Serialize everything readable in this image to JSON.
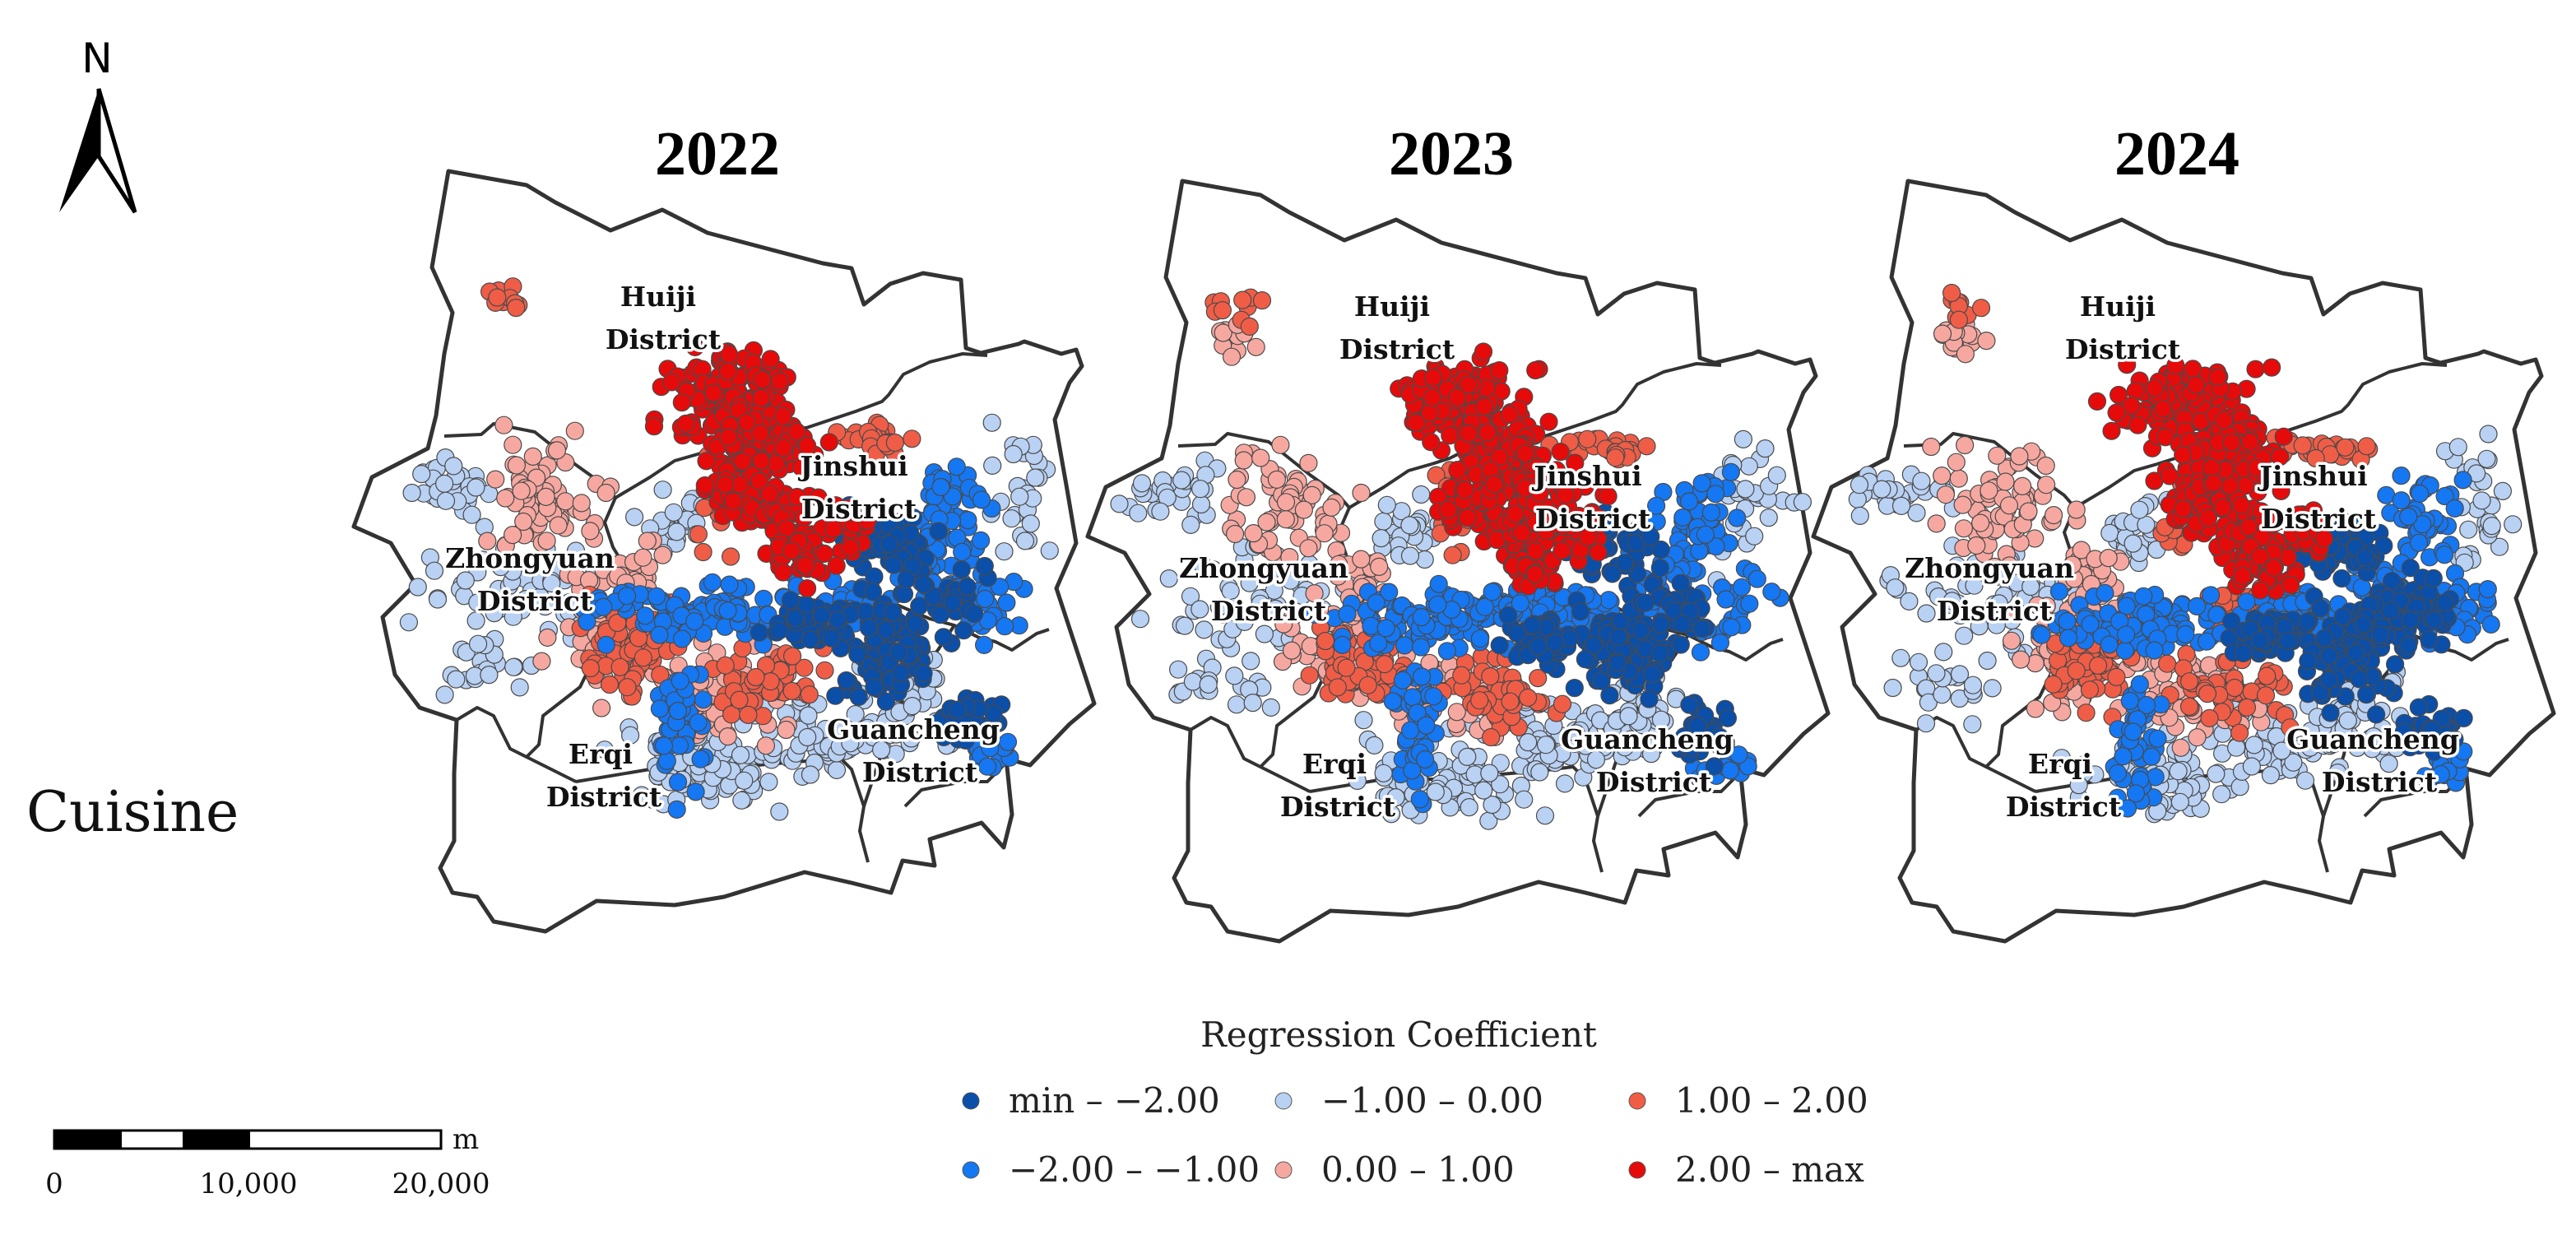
{
  "row_label": "Cuisine",
  "north_label": "N",
  "legend": {
    "title": "Regression Coefficient",
    "classes": [
      {
        "label": "min – −2.00",
        "color": "#0b4fa8"
      },
      {
        "label": "−2.00 – −1.00",
        "color": "#1577f2"
      },
      {
        "label": "−1.00 – 0.00",
        "color": "#b9d1f3"
      },
      {
        "label": "0.00 – 1.00",
        "color": "#f6a8a0"
      },
      {
        "label": "1.00 – 2.00",
        "color": "#f05d47"
      },
      {
        "label": "2.00 – max",
        "color": "#e60b0b"
      }
    ]
  },
  "scale_bar": {
    "unit": "m",
    "ticks": [
      "0",
      "10,000",
      "20,000"
    ]
  },
  "panels": [
    {
      "year": "2022"
    },
    {
      "year": "2023"
    },
    {
      "year": "2024"
    }
  ],
  "districts": [
    {
      "key": "huiji",
      "line1": "Huiji",
      "line2": "District"
    },
    {
      "key": "jinshui",
      "line1": "Jinshui",
      "line2": "District"
    },
    {
      "key": "zhongyuan",
      "line1": "Zhongyuan",
      "line2": "District"
    },
    {
      "key": "erqi",
      "line1": "Erqi",
      "line2": "District"
    },
    {
      "key": "guancheng",
      "line1": "Guancheng",
      "line2": "District"
    }
  ]
}
